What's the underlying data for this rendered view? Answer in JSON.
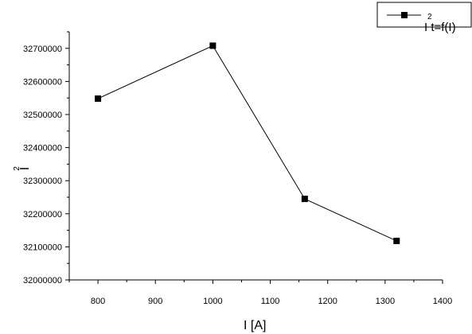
{
  "chart_data": {
    "type": "line",
    "x": [
      800,
      1000,
      1160,
      1320
    ],
    "values": [
      32548000,
      32708000,
      32245000,
      32118000
    ],
    "series": [
      {
        "name": "I²t=f(I)",
        "values": [
          32548000,
          32708000,
          32245000,
          32118000
        ]
      }
    ],
    "xlim": [
      750,
      1400
    ],
    "ylim": [
      32000000,
      32750000
    ],
    "xticks": [
      800,
      900,
      1000,
      1100,
      1200,
      1300,
      1400
    ],
    "yticks": [
      32000000,
      32100000,
      32200000,
      32300000,
      32400000,
      32500000,
      32600000,
      32700000
    ],
    "xtick_labels": [
      "800",
      "900",
      "1000",
      "1100",
      "1200",
      "1300",
      "1400"
    ],
    "ytick_labels": [
      "32000000",
      "32100000",
      "32200000",
      "32300000",
      "32400000",
      "32500000",
      "32600000",
      "32700000"
    ],
    "xlabel": "I  [A]",
    "ylabel_main": "I",
    "ylabel_sup": "2",
    "legend": {
      "label_main": "I t=f(I)",
      "label_sup": "2",
      "position": "top-right"
    },
    "marker": "square",
    "line_color": "#000000",
    "grid": false
  }
}
